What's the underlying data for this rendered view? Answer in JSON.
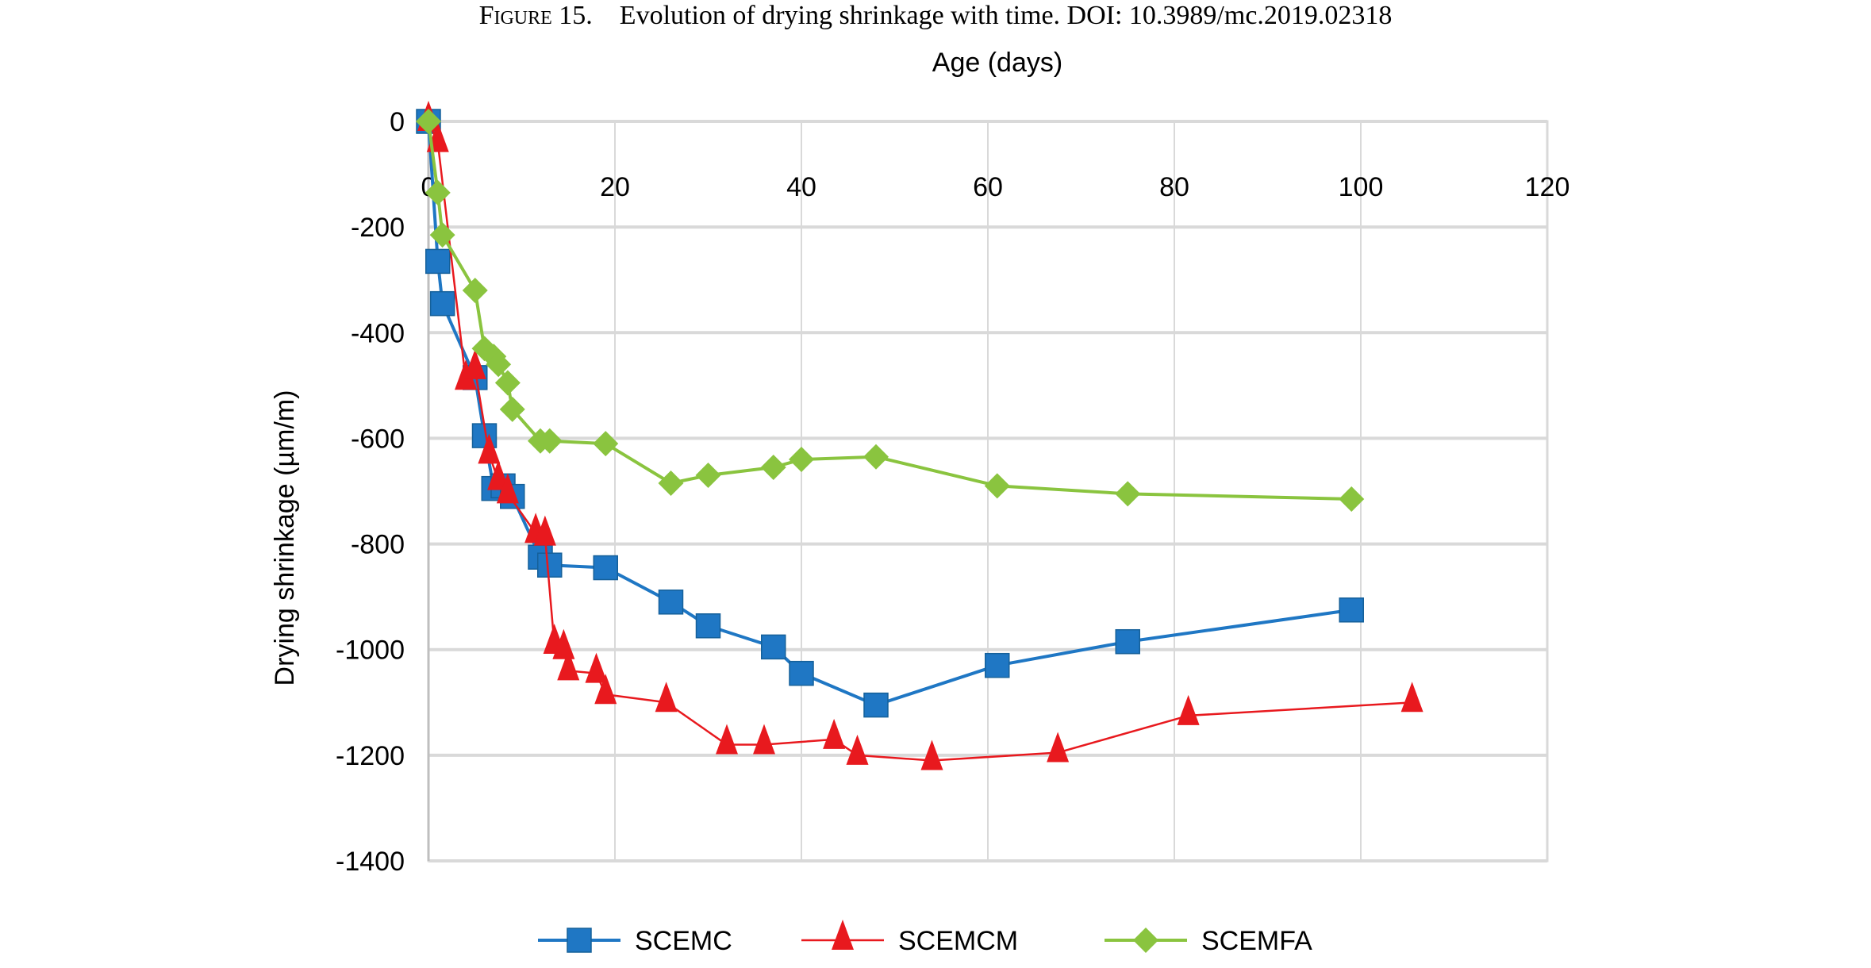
{
  "caption": {
    "label": "Figure 15.",
    "text": "Evolution of drying shrinkage with time. DOI: 10.3989/mc.2019.02318"
  },
  "chart_data": {
    "type": "line",
    "xlabel": "Age (days)",
    "ylabel": "Drying shrinkage (µm/m)",
    "xlim": [
      0,
      120
    ],
    "ylim": [
      -1400,
      0
    ],
    "xticks": [
      "0",
      "20",
      "40",
      "60",
      "80",
      "100",
      "120"
    ],
    "yticks": [
      "0",
      "-200",
      "-400",
      "-600",
      "-800",
      "-1000",
      "-1200",
      "-1400"
    ],
    "x_axis_position": "top",
    "grid": true,
    "legend_position": "bottom",
    "series": [
      {
        "name": "SCEMC",
        "color": "#1f77c4",
        "marker": "square",
        "points": [
          [
            0,
            0
          ],
          [
            1,
            -265
          ],
          [
            1.5,
            -345
          ],
          [
            5,
            -485
          ],
          [
            6,
            -595
          ],
          [
            7,
            -695
          ],
          [
            8,
            -690
          ],
          [
            9,
            -710
          ],
          [
            12,
            -825
          ],
          [
            13,
            -840
          ],
          [
            19,
            -845
          ],
          [
            26,
            -910
          ],
          [
            30,
            -955
          ],
          [
            37,
            -995
          ],
          [
            40,
            -1045
          ],
          [
            48,
            -1105
          ],
          [
            61,
            -1030
          ],
          [
            75,
            -985
          ],
          [
            99,
            -925
          ]
        ]
      },
      {
        "name": "SCEMCM",
        "color": "#e8191e",
        "marker": "triangle",
        "points": [
          [
            0,
            0
          ],
          [
            1,
            -40
          ],
          [
            4,
            -490
          ],
          [
            5,
            -470
          ],
          [
            6.5,
            -630
          ],
          [
            7.5,
            -680
          ],
          [
            8.5,
            -705
          ],
          [
            11.5,
            -780
          ],
          [
            12.5,
            -785
          ],
          [
            13.5,
            -990
          ],
          [
            14.5,
            -1000
          ],
          [
            15,
            -1040
          ],
          [
            18,
            -1045
          ],
          [
            19,
            -1085
          ],
          [
            25.5,
            -1100
          ],
          [
            32,
            -1180
          ],
          [
            36,
            -1180
          ],
          [
            43.5,
            -1170
          ],
          [
            46,
            -1200
          ],
          [
            54,
            -1210
          ],
          [
            67.5,
            -1195
          ],
          [
            81.5,
            -1125
          ],
          [
            105.5,
            -1100
          ]
        ]
      },
      {
        "name": "SCEMFA",
        "color": "#8ac43f",
        "marker": "diamond",
        "points": [
          [
            0,
            0
          ],
          [
            1,
            -135
          ],
          [
            1.5,
            -215
          ],
          [
            5,
            -320
          ],
          [
            6,
            -430
          ],
          [
            7,
            -445
          ],
          [
            7.5,
            -460
          ],
          [
            8.5,
            -495
          ],
          [
            9,
            -545
          ],
          [
            12,
            -605
          ],
          [
            13,
            -605
          ],
          [
            19,
            -610
          ],
          [
            26,
            -685
          ],
          [
            30,
            -670
          ],
          [
            37,
            -655
          ],
          [
            40,
            -640
          ],
          [
            48,
            -635
          ],
          [
            61,
            -690
          ],
          [
            75,
            -705
          ],
          [
            99,
            -715
          ]
        ]
      }
    ]
  }
}
